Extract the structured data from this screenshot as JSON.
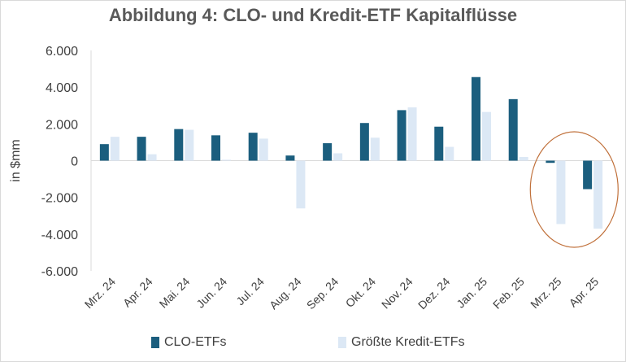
{
  "chart_data": {
    "type": "bar",
    "title": "Abbildung 4: CLO- und Kredit-ETF Kapitalflüsse",
    "ylabel": "in $mm",
    "xlabel": "",
    "ylim": [
      -6000,
      6000
    ],
    "yticks": [
      6000,
      4000,
      2000,
      0,
      -2000,
      -4000,
      -6000
    ],
    "ytick_labels": [
      "6.000",
      "4.000",
      "2.000",
      "0",
      "-2.000",
      "-4.000",
      "-6.000"
    ],
    "categories": [
      "Mrz. 24",
      "Apr. 24",
      "Mai. 24",
      "Jun. 24",
      "Jul. 24",
      "Aug. 24",
      "Sep. 24",
      "Okt. 24",
      "Nov. 24",
      "Dez. 24",
      "Jan. 25",
      "Feb. 25",
      "Mrz. 25",
      "Apr. 25"
    ],
    "series": [
      {
        "name": "CLO-ETFs",
        "color": "#1b5e7e",
        "values": [
          900,
          1300,
          1720,
          1380,
          1520,
          280,
          950,
          2050,
          2750,
          1850,
          4550,
          3350,
          -120,
          -1550
        ]
      },
      {
        "name": "Größte Kredit-ETFs",
        "color": "#dce8f5",
        "values": [
          1300,
          350,
          1680,
          50,
          1200,
          -2600,
          400,
          1250,
          2900,
          750,
          2650,
          200,
          -3450,
          -3700
        ]
      }
    ],
    "legend_position": "bottom",
    "grid": false,
    "annotation": {
      "shape": "ellipse",
      "color": "#c0703a",
      "highlights": [
        "Mrz. 25",
        "Apr. 25"
      ]
    }
  }
}
